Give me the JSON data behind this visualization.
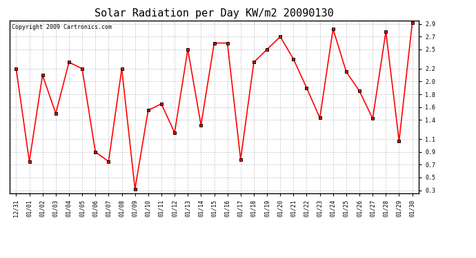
{
  "title": "Solar Radiation per Day KW/m2 20090130",
  "copyright": "Copyright 2009 Cartronics.com",
  "dates": [
    "12/31",
    "01/01",
    "01/02",
    "01/03",
    "01/04",
    "01/05",
    "01/06",
    "01/07",
    "01/08",
    "01/09",
    "01/10",
    "01/11",
    "01/12",
    "01/13",
    "01/14",
    "01/15",
    "01/16",
    "01/17",
    "01/18",
    "01/19",
    "01/20",
    "01/21",
    "01/22",
    "01/23",
    "01/24",
    "01/25",
    "01/26",
    "01/27",
    "01/28",
    "01/29",
    "01/30"
  ],
  "values": [
    2.2,
    0.75,
    2.1,
    1.5,
    2.3,
    2.2,
    0.9,
    0.75,
    2.2,
    0.32,
    1.55,
    1.65,
    1.2,
    2.5,
    1.32,
    2.6,
    2.6,
    0.78,
    2.3,
    2.5,
    2.7,
    2.35,
    1.9,
    1.43,
    2.82,
    2.15,
    1.85,
    1.42,
    2.78,
    1.07,
    2.92
  ],
  "line_color": "#ff0000",
  "marker": "s",
  "marker_size": 3,
  "marker_facecolor": "#ff0000",
  "marker_edgecolor": "#000000",
  "background_color": "#ffffff",
  "grid_color": "#aaaaaa",
  "ylim_min": 0.25,
  "ylim_max": 2.95,
  "yticks": [
    0.3,
    0.5,
    0.7,
    0.9,
    1.1,
    1.4,
    1.6,
    1.8,
    2.0,
    2.2,
    2.5,
    2.7,
    2.9
  ],
  "title_fontsize": 11,
  "copyright_fontsize": 6,
  "tick_fontsize": 6
}
